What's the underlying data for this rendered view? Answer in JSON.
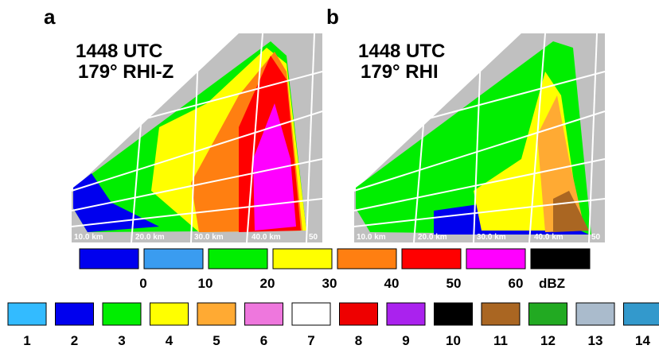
{
  "panels": [
    {
      "label": "a",
      "title_lines": [
        "1448 UTC",
        "179° RHI-Z"
      ],
      "range_labels": [
        "10.0 km",
        "20.0 km",
        "30.0 km",
        "40.0 km",
        "50"
      ]
    },
    {
      "label": "b",
      "title_lines": [
        "1448 UTC",
        "179° RHI"
      ],
      "range_labels": [
        "10.0 km",
        "20.0 km",
        "30.0 km",
        "40.0 km",
        "50"
      ]
    }
  ],
  "reflectivity_scale": {
    "colors": [
      "#0000ee",
      "#3a9cf0",
      "#00ee00",
      "#ffff00",
      "#ff7f11",
      "#ff0000",
      "#ff00ff",
      "#000000"
    ],
    "ticks": [
      "0",
      "10",
      "20",
      "30",
      "40",
      "50",
      "60"
    ],
    "unit": "dBZ"
  },
  "classes": {
    "labels": [
      "1",
      "2",
      "3",
      "4",
      "5",
      "6",
      "7",
      "8",
      "9",
      "10",
      "11",
      "12",
      "13",
      "14"
    ],
    "colors": [
      "#33bbff",
      "#0000ee",
      "#00ee00",
      "#ffff00",
      "#ffaa33",
      "#ee77dd",
      "#ffffff",
      "#ee0000",
      "#aa22ee",
      "#000000",
      "#aa6622",
      "#22aa22",
      "#aabbcc",
      "#3399cc"
    ]
  }
}
